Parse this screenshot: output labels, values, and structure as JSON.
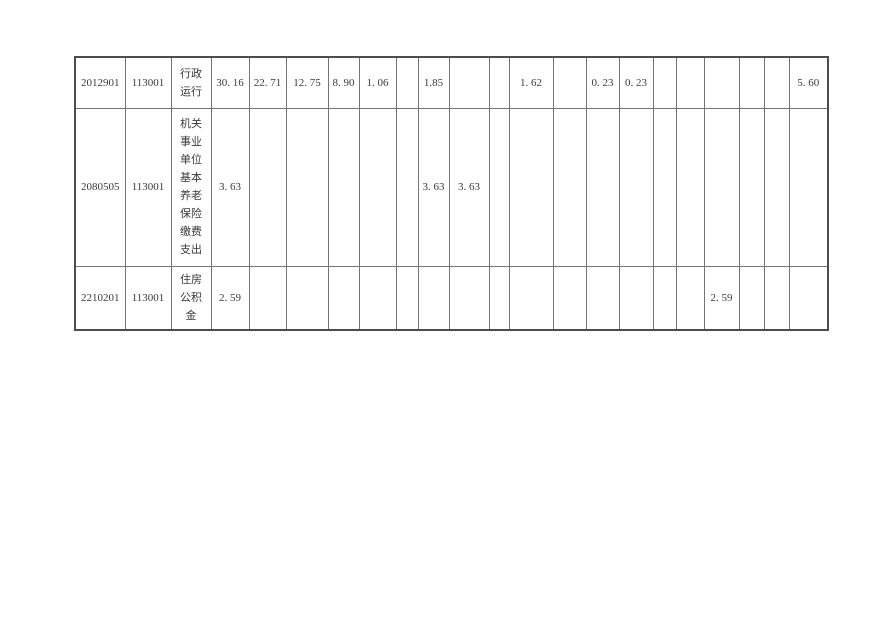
{
  "page": {
    "background": "#ffffff"
  },
  "table": {
    "description": "budget-expenditure-continuation-table",
    "colors": {
      "outer_border": "#4d4d4d",
      "inner_border": "#757575",
      "text": "#3a3a3a"
    },
    "rows": [
      [
        "2012901",
        "113001",
        "行政\n运行",
        "30. 16",
        "22. 71",
        "12. 75",
        "8. 90",
        "1. 06",
        "",
        "1.85",
        "",
        "",
        "1. 62",
        "",
        "0. 23",
        "0. 23",
        "",
        "",
        "",
        "",
        "",
        "5. 60"
      ],
      [
        "2080505",
        "113001",
        "机关\n事业\n单位\n基本\n养老\n保险\n缴费\n支出",
        "3. 63",
        "",
        "",
        "",
        "",
        "",
        "3. 63",
        "3. 63",
        "",
        "",
        "",
        "",
        "",
        "",
        "",
        "",
        "",
        "",
        ""
      ],
      [
        "2210201",
        "113001",
        "住房\n公积\n金",
        "2. 59",
        "",
        "",
        "",
        "",
        "",
        "",
        "",
        "",
        "",
        "",
        "",
        "",
        "",
        "",
        "2. 59",
        "",
        "",
        ""
      ]
    ],
    "small_cells": [
      "0-9",
      "1-9",
      "1-10"
    ]
  }
}
